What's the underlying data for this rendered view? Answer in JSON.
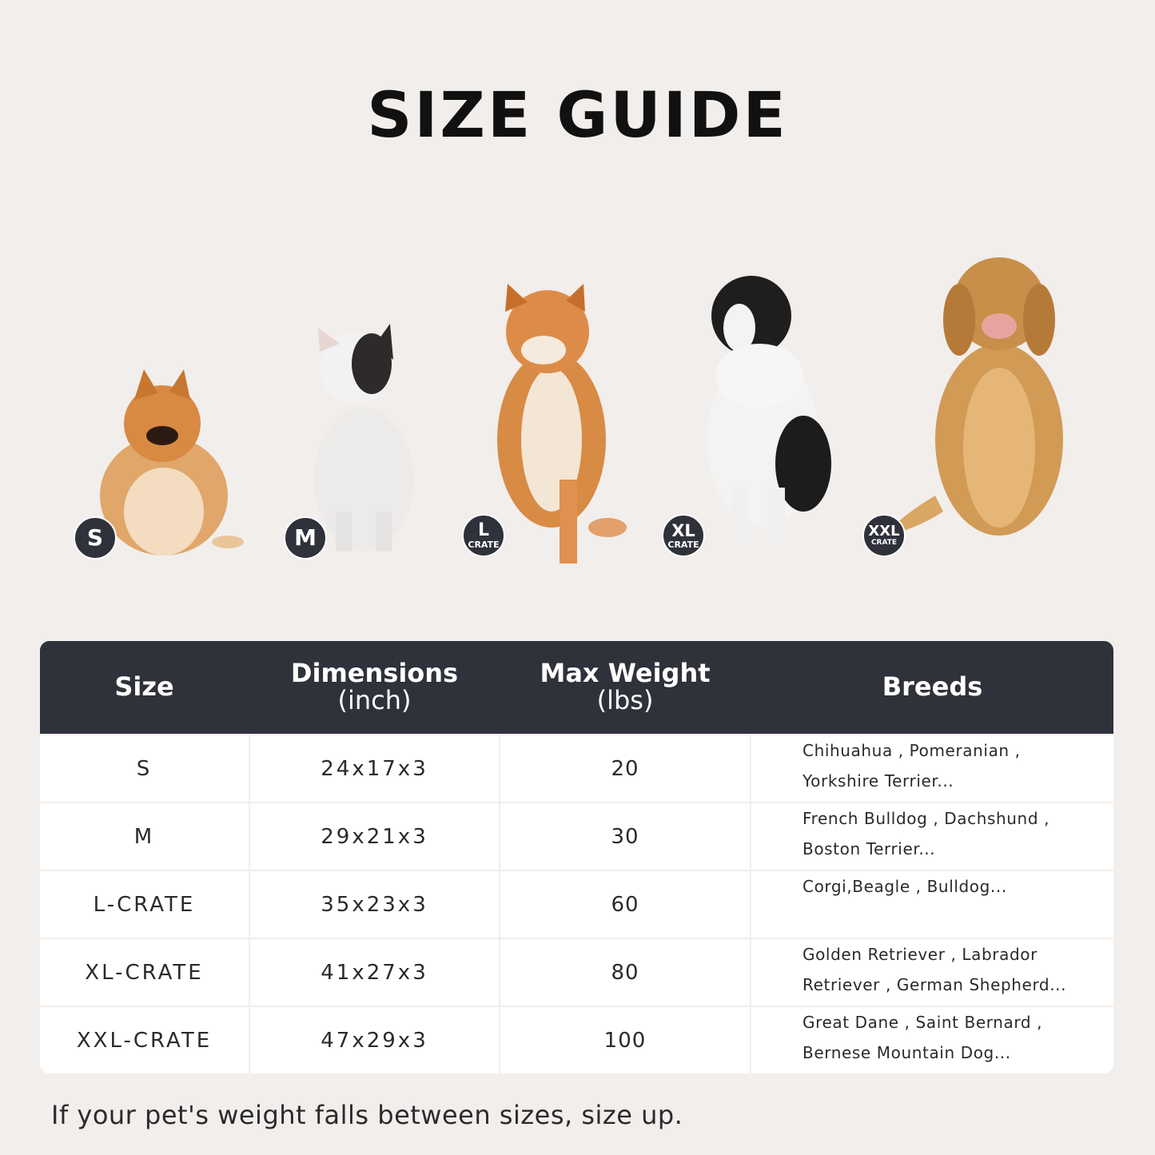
{
  "title": "SIZE GUIDE",
  "badges": [
    {
      "size": "S",
      "sub": ""
    },
    {
      "size": "M",
      "sub": ""
    },
    {
      "size": "L",
      "sub": "CRATE"
    },
    {
      "size": "XL",
      "sub": "CRATE"
    },
    {
      "size": "XXL",
      "sub": "CRATE"
    }
  ],
  "table": {
    "headers": [
      {
        "line1": "Size",
        "line2": ""
      },
      {
        "line1": "Dimensions",
        "line2": "(inch)"
      },
      {
        "line1": "Max Weight",
        "line2": "(lbs)"
      },
      {
        "line1": "Breeds",
        "line2": ""
      }
    ],
    "rows": [
      {
        "size": "S",
        "dimensions": "24x17x3",
        "weight": "20",
        "breeds": [
          "Chihuahua , Pomeranian ,",
          "Yorkshire Terrier..."
        ]
      },
      {
        "size": "M",
        "dimensions": "29x21x3",
        "weight": "30",
        "breeds": [
          "French Bulldog , Dachshund ,",
          "Boston Terrier..."
        ]
      },
      {
        "size": "L-CRATE",
        "dimensions": "35x23x3",
        "weight": "60",
        "breeds": [
          "Corgi,Beagle , Bulldog...",
          ""
        ]
      },
      {
        "size": "XL-CRATE",
        "dimensions": "41x27x3",
        "weight": "80",
        "breeds": [
          "Golden Retriever , Labrador",
          "Retriever , German Shepherd..."
        ]
      },
      {
        "size": "XXL-CRATE",
        "dimensions": "47x29x3",
        "weight": "100",
        "breeds": [
          "Great Dane , Saint Bernard ,",
          "Bernese Mountain Dog..."
        ]
      }
    ]
  },
  "note": "If your pet's weight falls between sizes, size up.",
  "colors": {
    "header_bg": "#2f313b",
    "page_bg": "#f2eeeb",
    "badge_bg": "#2f313b"
  }
}
